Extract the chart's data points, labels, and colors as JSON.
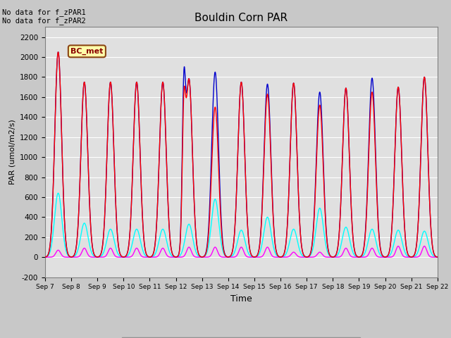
{
  "title": "Bouldin Corn PAR",
  "ylabel": "PAR (umol/m2/s)",
  "xlabel": "Time",
  "ylim": [
    -200,
    2300
  ],
  "yticks": [
    -200,
    0,
    200,
    400,
    600,
    800,
    1000,
    1200,
    1400,
    1600,
    1800,
    2000,
    2200
  ],
  "n_days": 15,
  "start_day": 7,
  "annotation_text": "No data for f_zPAR1\nNo data for f_zPAR2",
  "legend_label": "BC_met",
  "colors": {
    "PAR_in": "#ff0000",
    "PAR_out": "#ff00ff",
    "totPAR": "#0000cc",
    "difPAR": "#00ffff"
  },
  "fig_facecolor": "#c8c8c8",
  "ax_facecolor": "#e0e0e0",
  "daily_peaks_totPAR": [
    2050,
    1750,
    1750,
    1750,
    1750,
    1780,
    1850,
    1750,
    1730,
    1740,
    1650,
    1690,
    1790,
    1700,
    1800
  ],
  "daily_peaks_PAR_in": [
    2050,
    1750,
    1750,
    1750,
    1750,
    1780,
    1500,
    1750,
    1630,
    1740,
    1520,
    1690,
    1650,
    1700,
    1800
  ],
  "daily_peaks_PAR_out": [
    70,
    90,
    90,
    90,
    90,
    100,
    100,
    100,
    100,
    50,
    50,
    90,
    90,
    110,
    110
  ],
  "daily_peaks_difPAR": [
    640,
    340,
    280,
    280,
    280,
    330,
    580,
    270,
    400,
    280,
    490,
    300,
    280,
    270,
    260
  ],
  "day12_special_totPAR_morning": 1290,
  "day12_special_PAR_in_morning": 1080,
  "day21_afternoon_dip_totPAR": 800
}
